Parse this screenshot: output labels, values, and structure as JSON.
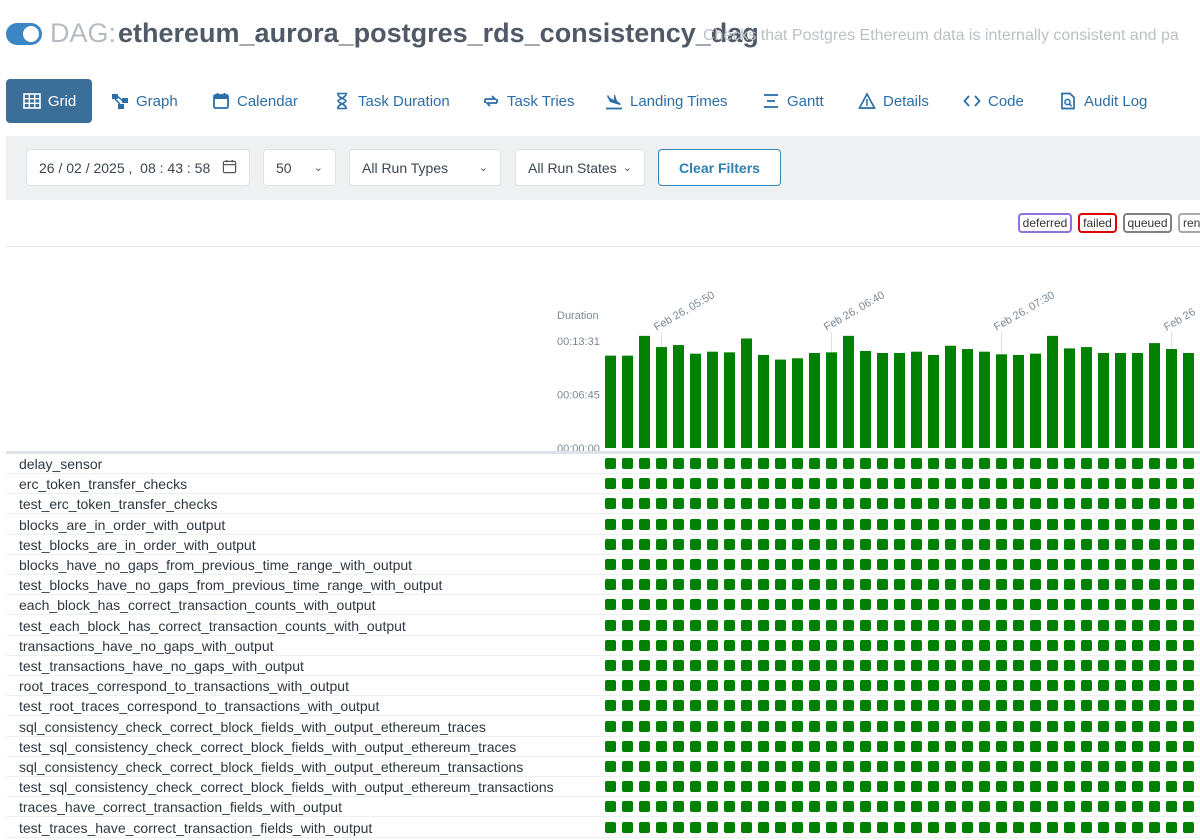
{
  "header": {
    "prefix": "DAG:",
    "dag_id": "ethereum_aurora_postgres_rds_consistency_dag",
    "description": "Checks that Postgres Ethereum data is internally consistent and pa",
    "toggle_on": true
  },
  "tabs": [
    {
      "label": "Grid",
      "icon": "grid-icon",
      "active": true
    },
    {
      "label": "Graph",
      "icon": "graph-icon",
      "active": false
    },
    {
      "label": "Calendar",
      "icon": "calendar-icon",
      "active": false
    },
    {
      "label": "Task Duration",
      "icon": "hourglass-icon",
      "active": false
    },
    {
      "label": "Task Tries",
      "icon": "retry-icon",
      "active": false
    },
    {
      "label": "Landing Times",
      "icon": "plane-landing-icon",
      "active": false
    },
    {
      "label": "Gantt",
      "icon": "gantt-icon",
      "active": false
    },
    {
      "label": "Details",
      "icon": "triangle-icon",
      "active": false
    },
    {
      "label": "Code",
      "icon": "code-icon",
      "active": false
    },
    {
      "label": "Audit Log",
      "icon": "audit-log-icon",
      "active": false
    }
  ],
  "filters": {
    "date_value": "26 / 02 / 2025 ,  08 : 43 : 58",
    "num_runs": "50",
    "run_types": "All Run Types",
    "run_states": "All Run States",
    "clear_label": "Clear Filters"
  },
  "legend": [
    {
      "label": "deferred",
      "color": "#9370db"
    },
    {
      "label": "failed",
      "color": "#e00000"
    },
    {
      "label": "queued",
      "color": "#808080"
    },
    {
      "label": "ren",
      "color": "#a9a9a9"
    }
  ],
  "chart_data": {
    "type": "bar",
    "ylabel": "Duration",
    "y_ticks": [
      "00:13:31",
      "00:06:45",
      "00:00:00"
    ],
    "ylim_seconds": [
      0,
      811
    ],
    "x_tick_labels": [
      "Feb 26, 05:50",
      "Feb 26, 06:40",
      "Feb 26, 07:30",
      "Feb 26"
    ],
    "bar_color": "#008000",
    "values_seconds": [
      700,
      700,
      850,
      765,
      780,
      715,
      730,
      725,
      830,
      705,
      670,
      680,
      720,
      725,
      850,
      735,
      720,
      720,
      730,
      705,
      775,
      750,
      730,
      710,
      705,
      715,
      850,
      755,
      765,
      720,
      720,
      720,
      795,
      750,
      720
    ]
  },
  "grid": {
    "columns": 35,
    "status": "success",
    "color": "#008000"
  },
  "tasks": [
    "delay_sensor",
    "erc_token_transfer_checks",
    "test_erc_token_transfer_checks",
    "blocks_are_in_order_with_output",
    "test_blocks_are_in_order_with_output",
    "blocks_have_no_gaps_from_previous_time_range_with_output",
    "test_blocks_have_no_gaps_from_previous_time_range_with_output",
    "each_block_has_correct_transaction_counts_with_output",
    "test_each_block_has_correct_transaction_counts_with_output",
    "transactions_have_no_gaps_with_output",
    "test_transactions_have_no_gaps_with_output",
    "root_traces_correspond_to_transactions_with_output",
    "test_root_traces_correspond_to_transactions_with_output",
    "sql_consistency_check_correct_block_fields_with_output_ethereum_traces",
    "test_sql_consistency_check_correct_block_fields_with_output_ethereum_traces",
    "sql_consistency_check_correct_block_fields_with_output_ethereum_transactions",
    "test_sql_consistency_check_correct_block_fields_with_output_ethereum_transactions",
    "traces_have_correct_transaction_fields_with_output",
    "test_traces_have_correct_transaction_fields_with_output"
  ]
}
